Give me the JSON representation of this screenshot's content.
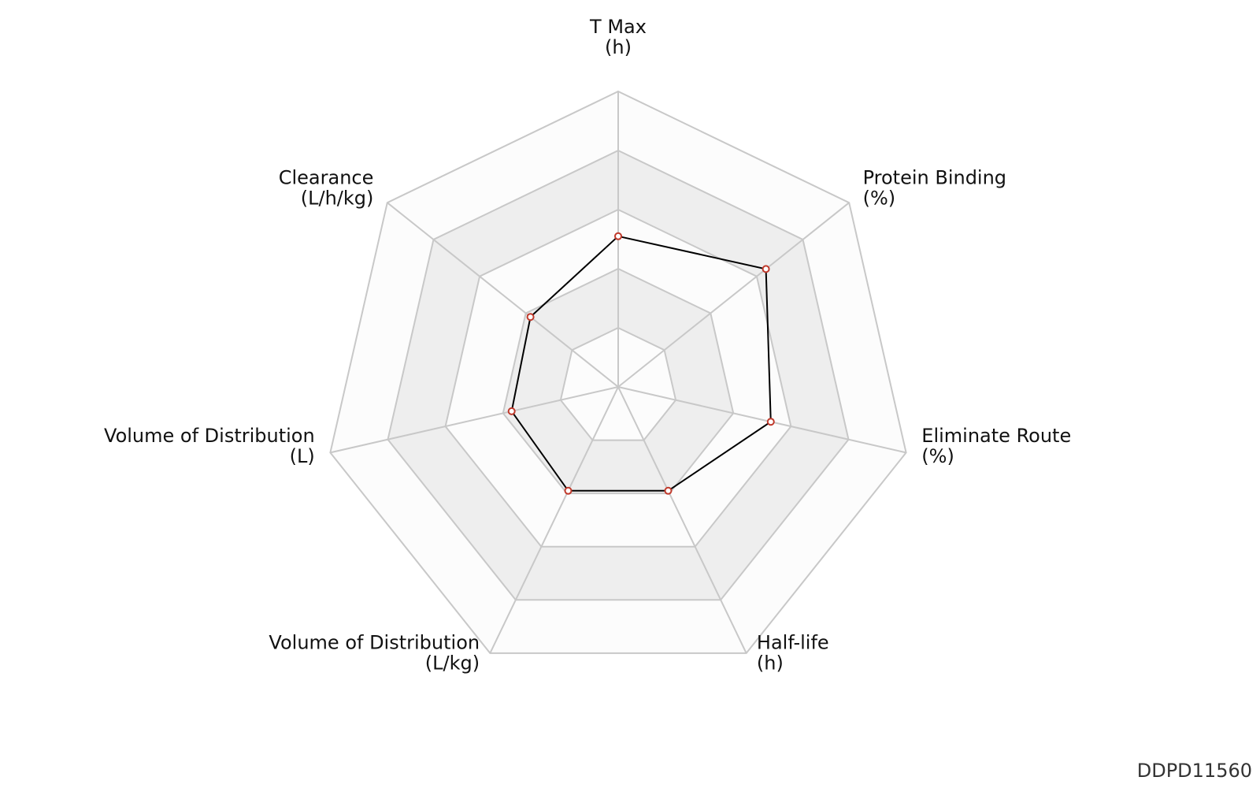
{
  "chart_data": {
    "type": "radar",
    "axes": [
      {
        "name": "T Max",
        "unit": "(h)"
      },
      {
        "name": "Protein Binding",
        "unit": "(%)"
      },
      {
        "name": "Eliminate Route",
        "unit": "(%)"
      },
      {
        "name": "Half-life",
        "unit": "(h)"
      },
      {
        "name": "Volume of Distribution",
        "unit": "(L/kg)"
      },
      {
        "name": "Volume of Distribution",
        "unit": "(L)"
      },
      {
        "name": "Clearance",
        "unit": "(L/h/kg)"
      }
    ],
    "levels": 5,
    "range": [
      0,
      1
    ],
    "series": [
      {
        "values": [
          0.51,
          0.64,
          0.53,
          0.39,
          0.39,
          0.37,
          0.38
        ]
      }
    ],
    "colors": {
      "line": "#000000",
      "marker_stroke": "#c0392b",
      "marker_fill": "#ffffff",
      "band_light": "#fcfcfc",
      "band_dark": "#eeeeee",
      "grid": "#c8c8c8"
    }
  },
  "watermark": "DDPD11560"
}
